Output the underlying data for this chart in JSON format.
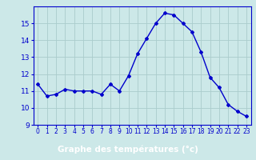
{
  "hours": [
    0,
    1,
    2,
    3,
    4,
    5,
    6,
    7,
    8,
    9,
    10,
    11,
    12,
    13,
    14,
    15,
    16,
    17,
    18,
    19,
    20,
    21,
    22,
    23
  ],
  "temps": [
    11.4,
    10.7,
    10.8,
    11.1,
    11.0,
    11.0,
    11.0,
    10.8,
    11.4,
    11.0,
    11.9,
    13.2,
    14.1,
    15.0,
    15.6,
    15.5,
    15.0,
    14.5,
    13.3,
    11.8,
    11.2,
    10.2,
    9.8,
    9.5
  ],
  "line_color": "#0000cc",
  "marker": "D",
  "marker_size": 2.0,
  "bg_color": "#cce8e8",
  "grid_color": "#aacccc",
  "xlabel": "Graphe des températures (°c)",
  "xlabel_bg": "#0000bb",
  "xlabel_text_color": "#ffffff",
  "tick_color": "#0000cc",
  "axis_color": "#0000cc",
  "ylim": [
    9,
    16
  ],
  "yticks": [
    9,
    10,
    11,
    12,
    13,
    14,
    15
  ],
  "xlim": [
    -0.5,
    23.5
  ],
  "xticks": [
    0,
    1,
    2,
    3,
    4,
    5,
    6,
    7,
    8,
    9,
    10,
    11,
    12,
    13,
    14,
    15,
    16,
    17,
    18,
    19,
    20,
    21,
    22,
    23
  ]
}
